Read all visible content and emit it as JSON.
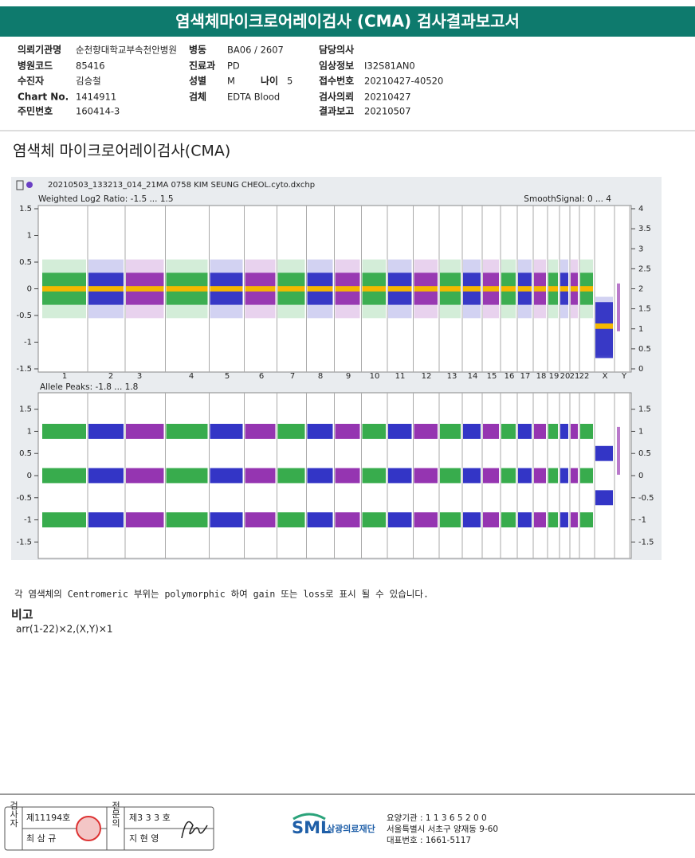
{
  "header": {
    "title": "염색체마이크로어레이검사 (CMA) 검사결과보고서"
  },
  "info": [
    {
      "label": "의뢰기관명",
      "value": "순천향대학교부속천안병원"
    },
    {
      "label": "병동",
      "value": "BA06 / 2607"
    },
    {
      "label": "담당의사",
      "value": ""
    },
    {
      "label": "병원코드",
      "value": "85416"
    },
    {
      "label": "진료과",
      "value": "PD"
    },
    {
      "label": "임상정보",
      "value": "I32S81AN0"
    },
    {
      "label": "수진자",
      "value": "김승철"
    },
    {
      "label": "성별",
      "value": "M"
    },
    {
      "label": "접수번호",
      "value": "20210427-40520"
    },
    {
      "label": "Chart No.",
      "value": "1414911"
    },
    {
      "label": "검체",
      "value": "EDTA Blood"
    },
    {
      "label": "검사의뢰",
      "value": "20210427"
    },
    {
      "label": "주민번호",
      "value": "160414-3"
    },
    {
      "label": "결과보고",
      "value": "20210507"
    }
  ],
  "age": {
    "label": "나이",
    "value": "5"
  },
  "section_title": "염색체 마이크로어레이검사(CMA)",
  "figure": {
    "file": "20210503_133213_014_21MA 0758 KIM SEUNG CHEOL.cyto.dxchp",
    "top": {
      "label": "Weighted Log2 Ratio: -1.5 ... 1.5",
      "right_label": "SmoothSignal: 0 ... 4",
      "ylim": [
        -1.5,
        1.5
      ],
      "yticks": [
        1.5,
        1,
        0.5,
        0,
        -0.5,
        -1,
        -1.5
      ],
      "y2lim": [
        0,
        4
      ],
      "y2ticks": [
        4,
        3.5,
        3,
        2.5,
        2,
        1.5,
        1,
        0.5,
        0
      ]
    },
    "bottom": {
      "label": "Allele Peaks: -1.8 ... 1.8",
      "ylim": [
        -1.8,
        1.8
      ],
      "yticks": [
        1.5,
        1,
        0.5,
        0,
        -0.5,
        -1,
        -1.5
      ],
      "y2ticks": [
        1.5,
        1,
        0.5,
        0,
        -0.5,
        -1,
        -1.5
      ]
    },
    "chromosomes": [
      "1",
      "2",
      "3",
      "4",
      "5",
      "6",
      "7",
      "8",
      "9",
      "10",
      "11",
      "12",
      "13",
      "14",
      "15",
      "16",
      "17",
      "18",
      "19",
      "20",
      "21",
      "22",
      "X",
      "Y"
    ]
  },
  "note": "각 염색체의 Centromeric 부위는 polymorphic 하여 gain 또는 loss로 표시 될 수 있습니다.",
  "remarks": {
    "title": "비고",
    "text": "arr(1-22)×2,(X,Y)×1"
  },
  "footer": {
    "inspector_label": "검사자",
    "inspector_no": "제11194호",
    "inspector_name": "최 삼 규",
    "specialist_label": "전문의",
    "specialist_no": "제3 3 3 호",
    "specialist_name": "지 현 영",
    "logo": "SML",
    "org": "삼광의료재단",
    "lines": [
      "요양기관 : 1 1 3 6 5 2 0 0",
      "서울특별시 서초구 양재동 9-60",
      "대표번호 : 1661-5117"
    ]
  }
}
